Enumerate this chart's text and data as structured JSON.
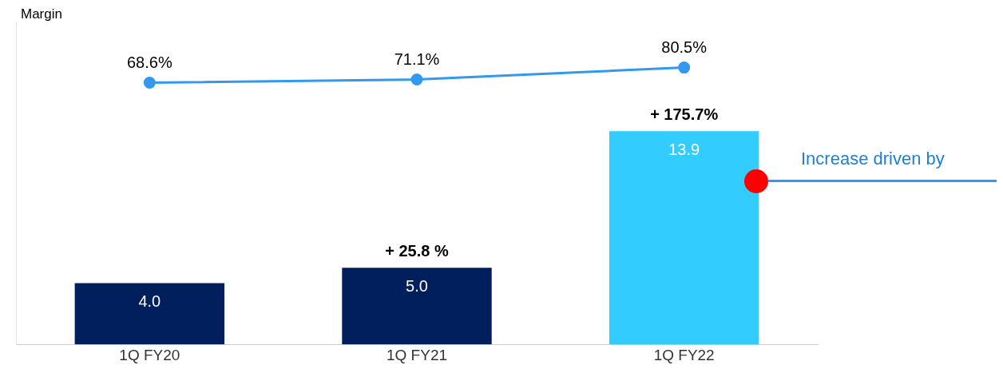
{
  "chart_data": {
    "type": "bar",
    "categories": [
      "1Q FY20",
      "1Q FY21",
      "1Q FY22"
    ],
    "series": [
      {
        "colors": [
          "#001f5c",
          "#001f5c",
          "#33ccff"
        ],
        "values": [
          4.0,
          5.0,
          13.9
        ],
        "value_labels": [
          "4.0",
          "5.0",
          "13.9"
        ]
      },
      {
        "type": "line",
        "name": "Margin",
        "axis": "y2",
        "color": "#3399ee",
        "values": [
          68.6,
          71.1,
          80.5
        ],
        "value_labels": [
          "68.6%",
          "71.1%",
          "80.5%"
        ]
      }
    ],
    "marker": "circle",
    "ylim": [
      0,
      21
    ],
    "y2lim": [
      -137,
      116
    ],
    "tick_labels": "x",
    "grid": false,
    "legend": false,
    "annotations": [
      {
        "text": "+ 25.8 %",
        "x": "1Q FY21",
        "y": 5.0
      },
      {
        "text": "+ 175.7%",
        "x": "1Q FY22",
        "y": 13.9
      },
      "Increase driven by"
    ]
  }
}
